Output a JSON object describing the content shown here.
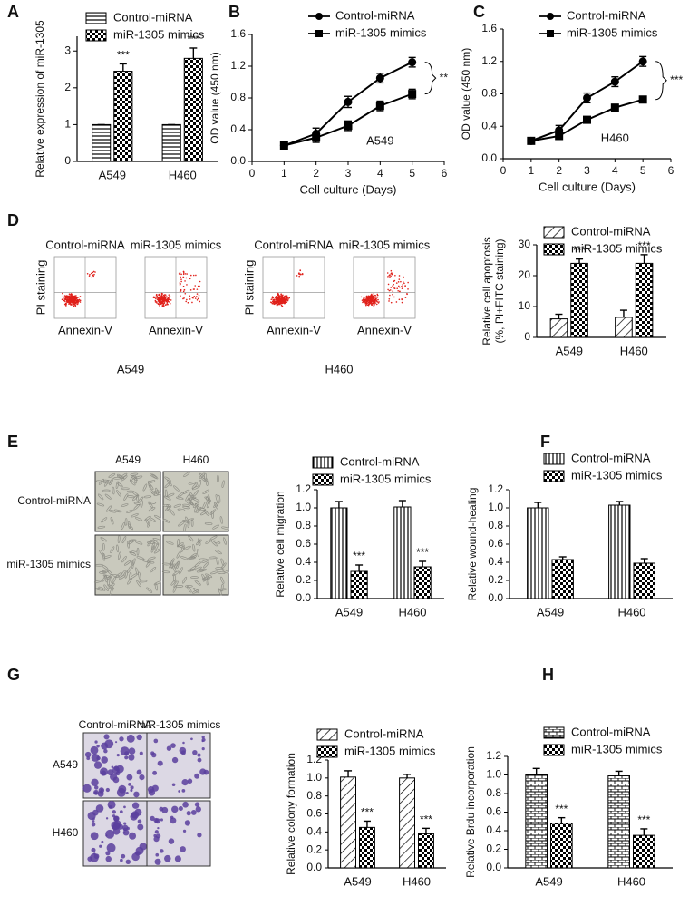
{
  "panel_labels": [
    "A",
    "B",
    "C",
    "D",
    "E",
    "F",
    "G",
    "H"
  ],
  "flow": {
    "groups": [
      {
        "cell_line": "A549",
        "conditions": [
          "Control-miRNA",
          "miR-1305 mimics"
        ],
        "ylabel": "PI staining",
        "xlabels": [
          "Annexin-V",
          "Annexin-V"
        ]
      },
      {
        "cell_line": "H460",
        "conditions": [
          "Control-miRNA",
          "miR-1305 mimics"
        ],
        "ylabel": "PI staining",
        "xlabels": [
          "Annexin-V",
          "Annexin-V"
        ]
      }
    ]
  },
  "migration_images": {
    "columns": [
      "A549",
      "H460"
    ],
    "rows": [
      "Control-miRNA",
      "miR-1305 mimics"
    ]
  },
  "colony_images": {
    "columns": [
      "Control-miRNA",
      "miR-1305 mimics"
    ],
    "rows": [
      "A549",
      "H460"
    ]
  },
  "chart_data": [
    {
      "type": "bar",
      "ylabel": "Relative expression of miR-1305",
      "categories": [
        "A549",
        "H460"
      ],
      "ylim": [
        0,
        3.4
      ],
      "yticks": [
        0,
        1,
        2,
        3
      ],
      "series": [
        {
          "name": "Control-miRNA",
          "color": "#000000",
          "pattern": "hlines",
          "values": [
            1,
            1
          ],
          "errors": [
            0,
            0
          ]
        },
        {
          "name": "miR-1305 mimics",
          "color": "#000000",
          "pattern": "checker",
          "values": [
            2.45,
            2.8
          ],
          "errors": [
            0.2,
            0.28
          ],
          "value_annotations": [
            "***",
            "***"
          ]
        }
      ]
    },
    {
      "type": "line",
      "xlabel": "Cell culture (Days)",
      "ylabel": "OD value (450 nm)",
      "label": "A549",
      "significance": "**",
      "x": [
        1,
        2,
        3,
        4,
        5
      ],
      "xlim": [
        0,
        6
      ],
      "xticks": [
        0,
        1,
        2,
        3,
        4,
        5,
        6
      ],
      "ylim": [
        0,
        1.6
      ],
      "yticks": [
        {
          "value": 0,
          "label": "0.0"
        },
        {
          "value": 0.4,
          "label": "0.4"
        },
        {
          "value": 0.8,
          "label": "0.8"
        },
        {
          "value": 1.2,
          "label": "1.2"
        },
        {
          "value": 1.6,
          "label": "1.6"
        }
      ],
      "series": [
        {
          "name": "Control-miRNA",
          "color": "#000000",
          "marker": "circle",
          "values": [
            0.2,
            0.35,
            0.75,
            1.05,
            1.25
          ],
          "errors": [
            0.02,
            0.07,
            0.07,
            0.06,
            0.06
          ]
        },
        {
          "name": "miR-1305 mimics",
          "color": "#000000",
          "marker": "square",
          "values": [
            0.2,
            0.3,
            0.45,
            0.7,
            0.85
          ],
          "errors": [
            0.02,
            0.06,
            0.06,
            0.06,
            0.06
          ]
        }
      ]
    },
    {
      "type": "line",
      "xlabel": "Cell culture (Days)",
      "ylabel": "OD value (450 nm)",
      "label": "H460",
      "significance": "***",
      "x": [
        1,
        2,
        3,
        4,
        5
      ],
      "xlim": [
        0,
        6
      ],
      "xticks": [
        0,
        1,
        2,
        3,
        4,
        5,
        6
      ],
      "ylim": [
        0,
        1.6
      ],
      "yticks": [
        {
          "value": 0,
          "label": "0.0"
        },
        {
          "value": 0.4,
          "label": "0.4"
        },
        {
          "value": 0.8,
          "label": "0.8"
        },
        {
          "value": 1.2,
          "label": "1.2"
        },
        {
          "value": 1.6,
          "label": "1.6"
        }
      ],
      "series": [
        {
          "name": "Control-miRNA",
          "color": "#000000",
          "marker": "circle",
          "values": [
            0.22,
            0.35,
            0.75,
            0.95,
            1.2
          ],
          "errors": [
            0.02,
            0.06,
            0.06,
            0.06,
            0.06
          ]
        },
        {
          "name": "miR-1305 mimics",
          "color": "#000000",
          "marker": "square",
          "values": [
            0.22,
            0.28,
            0.48,
            0.63,
            0.73
          ],
          "errors": [
            0.02,
            0.04,
            0.03,
            0.04,
            0.03
          ]
        }
      ]
    },
    {
      "type": "bar",
      "ylabel": [
        "Relative cell apoptosis",
        "(%, PI+FITC staining)"
      ],
      "categories": [
        "A549",
        "H460"
      ],
      "ylim": [
        0,
        30
      ],
      "yticks": [
        0,
        10,
        20,
        30
      ],
      "series": [
        {
          "name": "Control-miRNA",
          "color": "#000000",
          "pattern": "diag",
          "values": [
            6,
            6.5
          ],
          "errors": [
            1.5,
            2.3
          ]
        },
        {
          "name": "miR-1305 mimics",
          "color": "#000000",
          "pattern": "checker",
          "values": [
            24,
            24
          ],
          "errors": [
            1.4,
            2.8
          ],
          "value_annotations": [
            "***",
            "***"
          ]
        }
      ]
    },
    {
      "type": "bar",
      "ylabel": "Relative cell migration",
      "categories": [
        "A549",
        "H460"
      ],
      "ylim": [
        0,
        1.2
      ],
      "yticks": [
        {
          "value": 0,
          "label": "0.0"
        },
        {
          "value": 0.2,
          "label": "0.2"
        },
        {
          "value": 0.4,
          "label": "0.4"
        },
        {
          "value": 0.6,
          "label": "0.6"
        },
        {
          "value": 0.8,
          "label": "0.8"
        },
        {
          "value": 1,
          "label": "1.0"
        },
        {
          "value": 1.2,
          "label": "1.2"
        }
      ],
      "series": [
        {
          "name": "Control-miRNA",
          "color": "#000000",
          "pattern": "vlines",
          "values": [
            1.0,
            1.01
          ],
          "errors": [
            0.07,
            0.07
          ]
        },
        {
          "name": "miR-1305 mimics",
          "color": "#000000",
          "pattern": "checker",
          "values": [
            0.3,
            0.35
          ],
          "errors": [
            0.07,
            0.06
          ],
          "value_annotations": [
            "***",
            "***"
          ]
        }
      ]
    },
    {
      "type": "bar",
      "ylabel": "Relative wound-healing",
      "categories": [
        "A549",
        "H460"
      ],
      "ylim": [
        0,
        1.2
      ],
      "yticks": [
        {
          "value": 0,
          "label": "0.0"
        },
        {
          "value": 0.2,
          "label": "0.2"
        },
        {
          "value": 0.4,
          "label": "0.4"
        },
        {
          "value": 0.6,
          "label": "0.6"
        },
        {
          "value": 0.8,
          "label": "0.8"
        },
        {
          "value": 1,
          "label": "1.0"
        },
        {
          "value": 1.2,
          "label": "1.2"
        }
      ],
      "series": [
        {
          "name": "Control-miRNA",
          "color": "#000000",
          "pattern": "vlines",
          "values": [
            1.0,
            1.03
          ],
          "errors": [
            0.06,
            0.04
          ]
        },
        {
          "name": "miR-1305 mimics",
          "color": "#000000",
          "pattern": "checker",
          "values": [
            0.43,
            0.39
          ],
          "errors": [
            0.03,
            0.05
          ]
        }
      ]
    },
    {
      "type": "bar",
      "ylabel": "Relative colony formation",
      "categories": [
        "A549",
        "H460"
      ],
      "ylim": [
        0,
        1.2
      ],
      "yticks": [
        {
          "value": 0,
          "label": "0.0"
        },
        {
          "value": 0.2,
          "label": "0.2"
        },
        {
          "value": 0.4,
          "label": "0.4"
        },
        {
          "value": 0.6,
          "label": "0.6"
        },
        {
          "value": 0.8,
          "label": "0.8"
        },
        {
          "value": 1,
          "label": "1.0"
        },
        {
          "value": 1.2,
          "label": "1.2"
        }
      ],
      "series": [
        {
          "name": "Control-miRNA",
          "color": "#000000",
          "pattern": "diag",
          "values": [
            1.01,
            1.0
          ],
          "errors": [
            0.07,
            0.04
          ]
        },
        {
          "name": "miR-1305 mimics",
          "color": "#000000",
          "pattern": "checker",
          "values": [
            0.45,
            0.38
          ],
          "errors": [
            0.07,
            0.06
          ],
          "value_annotations": [
            "***",
            "***"
          ]
        }
      ]
    },
    {
      "type": "bar",
      "ylabel": "Relative Brdu incorporation",
      "categories": [
        "A549",
        "H460"
      ],
      "ylim": [
        0,
        1.2
      ],
      "yticks": [
        {
          "value": 0,
          "label": "0.0"
        },
        {
          "value": 0.2,
          "label": "0.2"
        },
        {
          "value": 0.4,
          "label": "0.4"
        },
        {
          "value": 0.6,
          "label": "0.6"
        },
        {
          "value": 0.8,
          "label": "0.8"
        },
        {
          "value": 1,
          "label": "1.0"
        },
        {
          "value": 1.2,
          "label": "1.2"
        }
      ],
      "series": [
        {
          "name": "Control-miRNA",
          "color": "#000000",
          "pattern": "brick",
          "values": [
            1.0,
            0.99
          ],
          "errors": [
            0.07,
            0.05
          ]
        },
        {
          "name": "miR-1305 mimics",
          "color": "#000000",
          "pattern": "checker",
          "values": [
            0.48,
            0.35
          ],
          "errors": [
            0.06,
            0.07
          ],
          "value_annotations": [
            "***",
            "***"
          ]
        }
      ]
    }
  ]
}
